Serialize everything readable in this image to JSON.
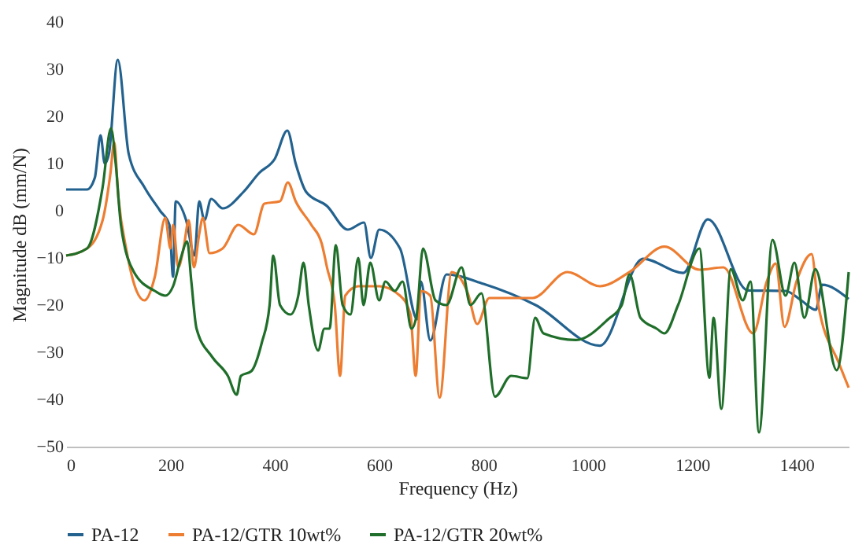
{
  "chart_data": {
    "type": "line",
    "xlabel": "Frequency (Hz)",
    "ylabel": "Magnitude dB (mm/N)",
    "xlim": [
      0,
      1500
    ],
    "xticks": [
      0,
      200,
      400,
      600,
      800,
      1000,
      1200,
      1400
    ],
    "ylim": [
      -50,
      40
    ],
    "yticks": [
      -50,
      -40,
      -30,
      -20,
      -10,
      0,
      10,
      20,
      30,
      40
    ],
    "grid": false,
    "legend": "bottom",
    "marker": "none",
    "line_style": "solid",
    "series": [
      {
        "name": "PA-12",
        "color": "#23628f",
        "x": [
          0,
          40,
          55,
          66,
          74,
          82,
          99,
          120,
          150,
          180,
          198,
          205,
          210,
          230,
          246,
          255,
          265,
          278,
          300,
          340,
          370,
          400,
          424,
          440,
          460,
          500,
          540,
          571,
          584,
          600,
          640,
          673,
          680,
          698,
          729,
          800,
          900,
          1023,
          1106,
          1183,
          1230,
          1307,
          1379,
          1409,
          1437,
          1449,
          1500
        ],
        "values": [
          4.5,
          4.5,
          7,
          16,
          10,
          12,
          32,
          12,
          5,
          0,
          -3,
          -14,
          2,
          -2,
          -9.5,
          2,
          -2,
          2.5,
          0.5,
          4,
          8,
          11,
          17,
          10,
          4,
          1,
          -4,
          -2.5,
          -10,
          -4,
          -8,
          -23,
          -15,
          -27.5,
          -13.5,
          -15.5,
          -20,
          -28.6,
          -10.2,
          -13.2,
          -1.8,
          -16.9,
          -17,
          -19,
          -21,
          -15.7,
          -18.7
        ]
      },
      {
        "name": "PA-12/GTR 10wt%",
        "color": "#ed7d31",
        "x": [
          0,
          40,
          70,
          85,
          92,
          100,
          115,
          135,
          150,
          170,
          190,
          200,
          205,
          215,
          225,
          235,
          245,
          255,
          262,
          275,
          300,
          330,
          360,
          380,
          410,
          425,
          440,
          470,
          490,
          500,
          515,
          525,
          535,
          560,
          600,
          640,
          660,
          670,
          680,
          698,
          716,
          739,
          770,
          788,
          811,
          894,
          961,
          1023,
          1080,
          1147,
          1214,
          1260,
          1317,
          1343,
          1360,
          1377,
          1400,
          1429,
          1441,
          1482,
          1500
        ],
        "values": [
          -9.5,
          -8,
          -2,
          8,
          14.5,
          3,
          -8,
          -17,
          -19,
          -14,
          -1.5,
          -8,
          -3,
          -12,
          -8,
          -2,
          -12,
          -5,
          -1.5,
          -9,
          -8,
          -3,
          -5,
          1.5,
          2,
          6,
          2,
          -3,
          -7,
          -12,
          -20,
          -35,
          -18,
          -16,
          -16,
          -18,
          -22,
          -35,
          -17,
          -18,
          -39.6,
          -13,
          -17.5,
          -24,
          -18.5,
          -18.5,
          -13,
          -16,
          -13,
          -7.6,
          -12.5,
          -12,
          -26,
          -15,
          -11.2,
          -24.6,
          -15,
          -9.2,
          -19.5,
          -32.5,
          -37.5
        ]
      },
      {
        "name": "PA-12/GTR 20wt%",
        "color": "#1f6e2a",
        "x": [
          0,
          40,
          70,
          86,
          95,
          105,
          130,
          170,
          190,
          205,
          220,
          232,
          240,
          250,
          280,
          310,
          327,
          335,
          355,
          375,
          390,
          397,
          410,
          430,
          445,
          455,
          465,
          483,
          495,
          505,
          517,
          530,
          545,
          560,
          570,
          583,
          600,
          612,
          630,
          645,
          662,
          672,
          684,
          708,
          729,
          758,
          775,
          796,
          822,
          853,
          884,
          899,
          915,
          977,
          1039,
          1065,
          1080,
          1101,
          1132,
          1147,
          1173,
          1214,
          1233,
          1241,
          1256,
          1274,
          1297,
          1312,
          1328,
          1354,
          1379,
          1396,
          1415,
          1436,
          1477,
          1500
        ],
        "values": [
          -9.5,
          -8,
          5,
          17.5,
          10,
          -3,
          -13,
          -17,
          -18,
          -16,
          -10,
          -6.5,
          -15,
          -25,
          -31,
          -35,
          -39,
          -35,
          -34,
          -28,
          -20,
          -9.5,
          -20,
          -22,
          -18,
          -11,
          -20,
          -29.6,
          -25,
          -25,
          -7.3,
          -20,
          -22,
          -10,
          -20,
          -11,
          -19,
          -15,
          -17,
          -15,
          -25,
          -22,
          -8,
          -19,
          -20,
          -12,
          -20,
          -17.5,
          -39.4,
          -35,
          -35.5,
          -22.7,
          -26,
          -27.4,
          -23,
          -20,
          -13.5,
          -22.7,
          -25,
          -26,
          -20,
          -8,
          -35.4,
          -22.7,
          -42,
          -12.4,
          -19,
          -15,
          -47,
          -6.2,
          -18,
          -11,
          -22.7,
          -12.4,
          -33.8,
          -13
        ]
      }
    ]
  }
}
